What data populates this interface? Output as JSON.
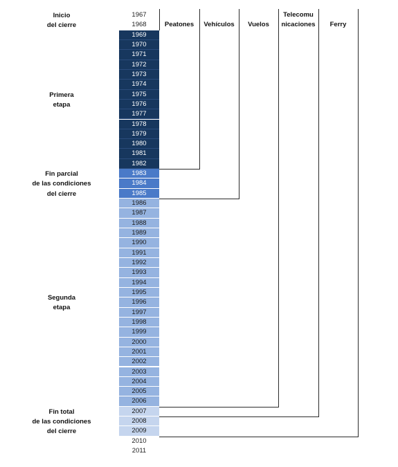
{
  "years": [
    "1967",
    "1968",
    "1969",
    "1970",
    "1971",
    "1972",
    "1973",
    "1974",
    "1975",
    "1976",
    "1977",
    "1978",
    "1979",
    "1980",
    "1981",
    "1982",
    "1983",
    "1984",
    "1985",
    "1986",
    "1987",
    "1988",
    "1989",
    "1990",
    "1991",
    "1992",
    "1993",
    "1994",
    "1995",
    "1996",
    "1997",
    "1998",
    "1999",
    "2000",
    "2001",
    "2002",
    "2003",
    "2004",
    "2005",
    "2006",
    "2007",
    "2008",
    "2009",
    "2010",
    "2011"
  ],
  "colors": {
    "first_stage": "#17375e",
    "partial_end": "#4a7ac8",
    "second_stage": "#95b3e0",
    "total_end": "#c5d5ee",
    "row_separator_dark": "#3a5f95",
    "row_separator_light": "#ffffff",
    "lines": "#2a2a2a"
  },
  "stages": [
    {
      "id": "inicio",
      "label_lines": [
        "Inicio",
        "del cierre"
      ],
      "from": "1967",
      "to": "1968"
    },
    {
      "id": "primera",
      "label_lines": [
        "Primera",
        "etapa"
      ],
      "from": "1969",
      "to": "1982"
    },
    {
      "id": "fin-parcial",
      "label_lines": [
        "Fin parcial",
        "de las condiciones",
        "del cierre"
      ],
      "from": "1983",
      "to": "1985"
    },
    {
      "id": "segunda",
      "label_lines": [
        "Segunda",
        "etapa"
      ],
      "from": "1986",
      "to": "2006"
    },
    {
      "id": "fin-total",
      "label_lines": [
        "Fin total",
        "de las condiciones",
        "del cierre"
      ],
      "from": "2007",
      "to": "2009"
    }
  ],
  "columns": [
    {
      "id": "peatones",
      "header_lines": [
        "Peatones"
      ],
      "ends_after": "1982"
    },
    {
      "id": "vehiculos",
      "header_lines": [
        "Vehículos"
      ],
      "ends_after": "1985"
    },
    {
      "id": "vuelos",
      "header_lines": [
        "Vuelos"
      ],
      "ends_after": "2006"
    },
    {
      "id": "telecomunicaciones",
      "header_lines": [
        "Telecomu",
        "nicaciones"
      ],
      "ends_after": "2007"
    },
    {
      "id": "ferry",
      "header_lines": [
        "Ferry"
      ],
      "ends_after": "2009"
    }
  ]
}
